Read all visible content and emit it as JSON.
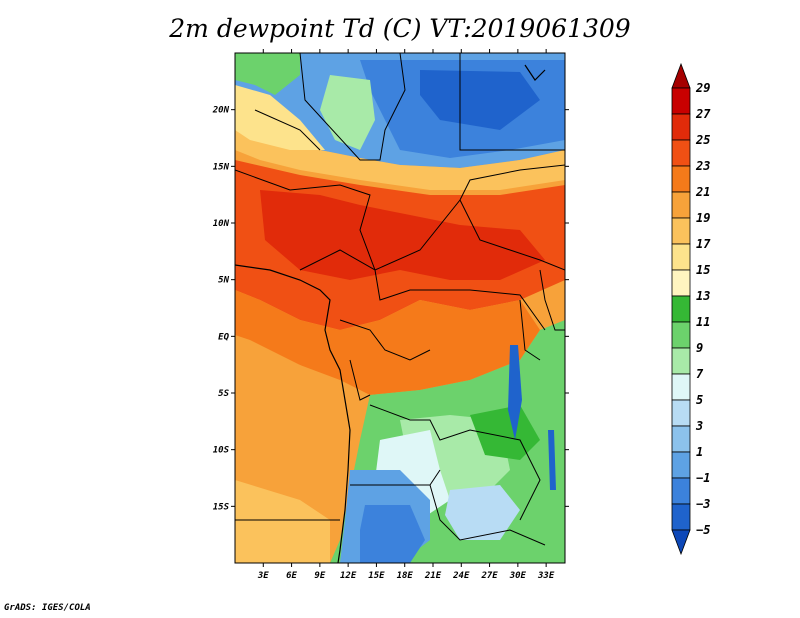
{
  "title": "2m dewpoint Td (C) VT:2019061309",
  "credit": "GrADS: IGES/COLA",
  "map": {
    "lon_ticks": [
      "3E",
      "6E",
      "9E",
      "12E",
      "15E",
      "18E",
      "21E",
      "24E",
      "27E",
      "30E",
      "33E"
    ],
    "lat_ticks": [
      "20N",
      "15N",
      "10N",
      "5N",
      "EQ",
      "5S",
      "10S",
      "15S"
    ],
    "lon_values": [
      3,
      6,
      9,
      12,
      15,
      18,
      21,
      24,
      27,
      30,
      33
    ],
    "lat_values": [
      20,
      15,
      10,
      5,
      0,
      -5,
      -10,
      -15
    ],
    "lon_range": [
      0,
      35
    ],
    "lat_range": [
      -20,
      25
    ]
  },
  "colorbar": {
    "labels": [
      "29",
      "27",
      "25",
      "23",
      "21",
      "19",
      "17",
      "15",
      "13",
      "11",
      "9",
      "7",
      "5",
      "3",
      "1",
      "−1",
      "−3",
      "−5"
    ],
    "colors": [
      "#a50000",
      "#c80000",
      "#e12b0a",
      "#f05014",
      "#f57a1a",
      "#f7a23a",
      "#fbc25c",
      "#fde38c",
      "#fff5c0",
      "#35b835",
      "#6cd26c",
      "#a8eaa8",
      "#dff7f7",
      "#b8dcf4",
      "#8cc2ec",
      "#5ea2e4",
      "#3c82dc",
      "#1f63cc",
      "#0d48b8"
    ]
  },
  "regions": [
    {
      "name": "north-far-green",
      "color": "#6cd26c"
    },
    {
      "name": "sahara-blue",
      "color": "#3c82dc"
    }
  ]
}
